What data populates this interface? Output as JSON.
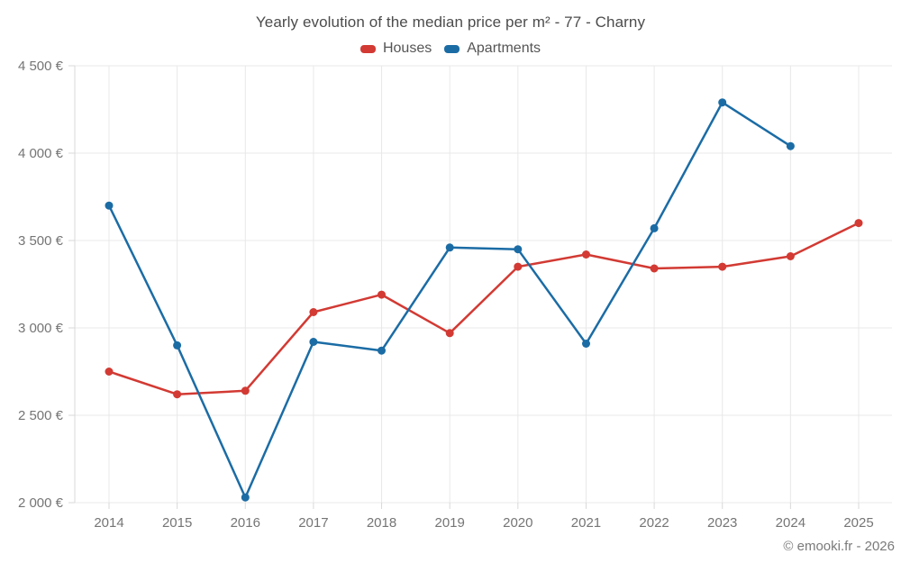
{
  "chart": {
    "title": "Yearly evolution of the median price per m² - 77 - Charny",
    "footer": "© emooki.fr - 2026"
  },
  "chart_data": {
    "type": "line",
    "title": "Yearly evolution of the median price per m² - 77 - Charny",
    "x": [
      2014,
      2015,
      2016,
      2017,
      2018,
      2019,
      2020,
      2021,
      2022,
      2023,
      2024,
      2025
    ],
    "x_tick_labels": [
      "2014",
      "2015",
      "2016",
      "2017",
      "2018",
      "2019",
      "2020",
      "2021",
      "2022",
      "2023",
      "2024",
      "2025"
    ],
    "series": [
      {
        "name": "Houses",
        "color": "#d23a33",
        "values": [
          2750,
          2620,
          2640,
          3090,
          3190,
          2970,
          3350,
          3420,
          3340,
          3350,
          3410,
          3600
        ]
      },
      {
        "name": "Apartments",
        "color": "#1b6ca5",
        "values": [
          3700,
          2900,
          2030,
          2920,
          2870,
          3460,
          3450,
          2910,
          3570,
          4290,
          4040,
          null
        ]
      }
    ],
    "ylim": [
      2000,
      4500
    ],
    "y_ticks": [
      2000,
      2500,
      3000,
      3500,
      4000,
      4500
    ],
    "y_tick_labels": [
      "2 000 €",
      "2 500 €",
      "3 000 €",
      "3 500 €",
      "4 000 €",
      "4 500 €"
    ],
    "xlabel": "",
    "ylabel": "",
    "grid": true,
    "legend_position": "top"
  }
}
